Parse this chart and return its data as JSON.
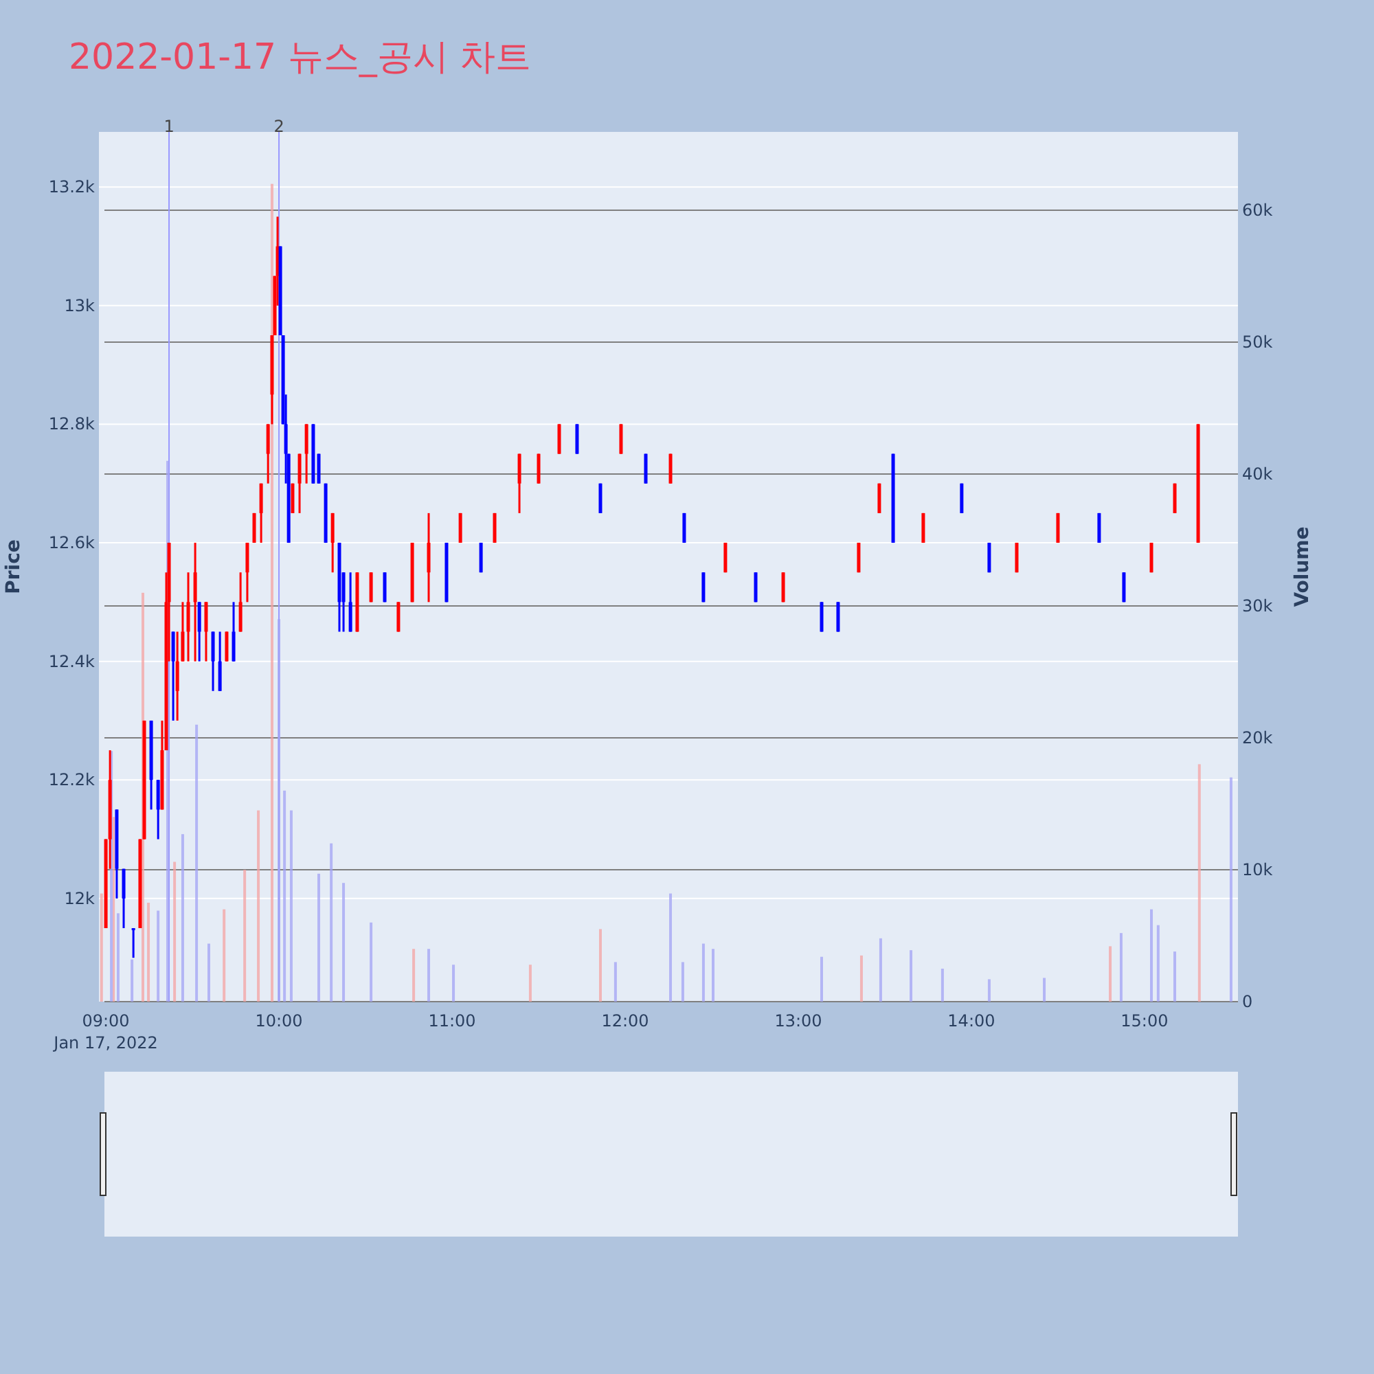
{
  "chart_data": {
    "type": "candlestick",
    "title": "2022-01-17 뉴스_공시 차트",
    "ylabel": "Price",
    "y2label": "Volume",
    "xlim": [
      8.96,
      15.54
    ],
    "xticks": [
      {
        "value": 9,
        "label": "09:00"
      },
      {
        "value": 10,
        "label": "10:00"
      },
      {
        "value": 11,
        "label": "11:00"
      },
      {
        "value": 12,
        "label": "12:00"
      },
      {
        "value": 13,
        "label": "13:00"
      },
      {
        "value": 14,
        "label": "14:00"
      },
      {
        "value": 15,
        "label": "15:00"
      }
    ],
    "ylim": [
      11826,
      13293
    ],
    "yticks": [
      {
        "value": 12000,
        "label": "12k"
      },
      {
        "value": 12200,
        "label": "12.2k"
      },
      {
        "value": 12400,
        "label": "12.4k"
      },
      {
        "value": 12600,
        "label": "12.6k"
      },
      {
        "value": 12800,
        "label": "12.8k"
      },
      {
        "value": 13000,
        "label": "13k"
      },
      {
        "value": 13200,
        "label": "13.2k"
      }
    ],
    "y2lim": [
      0,
      65940
    ],
    "y2ticks": [
      0,
      {
        "value": 10000,
        "label": "10k"
      },
      {
        "value": 20000,
        "label": "20k"
      },
      {
        "value": 30000,
        "label": "30k"
      },
      {
        "value": 40000,
        "label": "40k"
      },
      {
        "value": 50000,
        "label": "50k"
      },
      {
        "value": 60000,
        "label": "60k"
      }
    ],
    "grid": true,
    "annotations": [
      "Jan 17, 2022",
      {
        "text": "1",
        "x": 9.365
      },
      {
        "text": "2",
        "x": 10.0
      }
    ],
    "ref_lines": [
      {
        "axis": "x",
        "value": 9.365,
        "color": "#9999ff"
      },
      {
        "axis": "x",
        "value": 10.0,
        "color": "#9999ff"
      }
    ],
    "series": [
      {
        "type": "bar",
        "axis": "y2",
        "color": "#f5a3a3",
        "x": [
          8.975,
          9.044,
          9.214,
          9.246,
          9.397,
          9.683,
          9.802,
          9.881,
          9.96,
          10.778,
          11.452,
          11.857,
          13.365,
          14.802,
          15.317
        ],
        "values": [
          8200,
          14000,
          31000,
          7500,
          10600,
          7000,
          10000,
          14500,
          62000,
          4000,
          2800,
          5500,
          3500,
          4200,
          18000
        ]
      },
      {
        "type": "bar",
        "axis": "y2",
        "color": "#a3a3f5",
        "x": [
          9.032,
          9.071,
          9.151,
          9.302,
          9.357,
          9.444,
          9.524,
          9.595,
          10.0,
          10.032,
          10.071,
          10.23,
          10.302,
          10.373,
          10.532,
          10.865,
          11.008,
          11.944,
          12.262,
          12.333,
          12.452,
          12.508,
          13.135,
          13.476,
          13.651,
          13.833,
          14.103,
          14.421,
          14.865,
          15.04,
          15.079,
          15.175,
          15.5
        ],
        "values": [
          19000,
          6700,
          3200,
          6900,
          41000,
          12700,
          21000,
          4400,
          29000,
          16000,
          14500,
          9700,
          12000,
          9000,
          6000,
          4000,
          2800,
          3000,
          8200,
          3000,
          4400,
          4000,
          3400,
          4800,
          3900,
          2500,
          1700,
          1800,
          5200,
          7000,
          5800,
          3800,
          17000
        ]
      },
      {
        "type": "candlestick",
        "color": "#ff0000",
        "x": [
          9.0,
          9.024,
          9.198,
          9.222,
          9.325,
          9.349,
          9.365,
          9.413,
          9.444,
          9.476,
          9.516,
          9.579,
          9.698,
          9.778,
          9.817,
          9.857,
          9.897,
          9.937,
          9.96,
          9.976,
          9.992,
          10.079,
          10.119,
          10.159,
          10.31,
          10.452,
          10.532,
          10.69,
          10.77,
          10.865,
          11.048,
          11.246,
          11.389,
          11.5,
          11.619,
          11.976,
          12.262,
          12.579,
          12.913,
          13.349,
          13.468,
          13.722,
          14.262,
          14.5,
          15.04,
          15.175,
          15.31
        ],
        "ohlc": [
          [
            11950,
            12100,
            11950,
            12100
          ],
          [
            12100,
            12250,
            12050,
            12200
          ],
          [
            11950,
            12100,
            11950,
            12100
          ],
          [
            12100,
            12300,
            12100,
            12300
          ],
          [
            12150,
            12300,
            12150,
            12250
          ],
          [
            12250,
            12550,
            12250,
            12500
          ],
          [
            12500,
            12600,
            12400,
            12600
          ],
          [
            12350,
            12450,
            12300,
            12400
          ],
          [
            12400,
            12500,
            12400,
            12450
          ],
          [
            12450,
            12550,
            12400,
            12500
          ],
          [
            12500,
            12600,
            12400,
            12550
          ],
          [
            12450,
            12500,
            12400,
            12500
          ],
          [
            12400,
            12450,
            12400,
            12450
          ],
          [
            12450,
            12550,
            12450,
            12500
          ],
          [
            12550,
            12600,
            12500,
            12600
          ],
          [
            12600,
            12650,
            12600,
            12650
          ],
          [
            12650,
            12700,
            12600,
            12700
          ],
          [
            12750,
            12800,
            12700,
            12800
          ],
          [
            12850,
            12950,
            12800,
            12950
          ],
          [
            12950,
            13050,
            12950,
            13050
          ],
          [
            13050,
            13150,
            13000,
            13100
          ],
          [
            12650,
            12700,
            12650,
            12700
          ],
          [
            12700,
            12750,
            12650,
            12750
          ],
          [
            12750,
            12800,
            12700,
            12800
          ],
          [
            12600,
            12650,
            12550,
            12650
          ],
          [
            12450,
            12550,
            12450,
            12550
          ],
          [
            12500,
            12550,
            12500,
            12550
          ],
          [
            12450,
            12500,
            12450,
            12500
          ],
          [
            12500,
            12600,
            12500,
            12600
          ],
          [
            12550,
            12650,
            12500,
            12600
          ],
          [
            12600,
            12650,
            12600,
            12650
          ],
          [
            12600,
            12650,
            12600,
            12650
          ],
          [
            12700,
            12750,
            12650,
            12750
          ],
          [
            12700,
            12750,
            12700,
            12750
          ],
          [
            12750,
            12800,
            12750,
            12800
          ],
          [
            12750,
            12800,
            12750,
            12800
          ],
          [
            12700,
            12750,
            12700,
            12750
          ],
          [
            12550,
            12600,
            12550,
            12600
          ],
          [
            12500,
            12550,
            12500,
            12550
          ],
          [
            12550,
            12600,
            12550,
            12600
          ],
          [
            12650,
            12700,
            12650,
            12700
          ],
          [
            12600,
            12650,
            12600,
            12650
          ],
          [
            12550,
            12600,
            12550,
            12600
          ],
          [
            12600,
            12650,
            12600,
            12650
          ],
          [
            12550,
            12600,
            12550,
            12600
          ],
          [
            12650,
            12700,
            12650,
            12700
          ],
          [
            12600,
            12800,
            12600,
            12800
          ]
        ]
      },
      {
        "type": "candlestick",
        "color": "#0000ff",
        "x": [
          9.063,
          9.103,
          9.159,
          9.262,
          9.302,
          9.389,
          9.54,
          9.619,
          9.659,
          9.738,
          10.008,
          10.024,
          10.04,
          10.056,
          10.198,
          10.23,
          10.27,
          10.349,
          10.373,
          10.413,
          10.611,
          10.968,
          11.167,
          11.722,
          11.857,
          12.119,
          12.341,
          12.452,
          12.754,
          13.135,
          13.23,
          13.548,
          13.944,
          14.103,
          14.738,
          14.881
        ],
        "ohlc": [
          [
            12150,
            12150,
            12000,
            12050
          ],
          [
            12050,
            12050,
            11950,
            12000
          ],
          [
            11950,
            11950,
            11900,
            11950
          ],
          [
            12300,
            12300,
            12150,
            12200
          ],
          [
            12200,
            12200,
            12100,
            12150
          ],
          [
            12450,
            12450,
            12300,
            12400
          ],
          [
            12500,
            12500,
            12400,
            12450
          ],
          [
            12450,
            12450,
            12350,
            12400
          ],
          [
            12400,
            12450,
            12350,
            12350
          ],
          [
            12450,
            12500,
            12400,
            12400
          ],
          [
            13100,
            13100,
            12950,
            12950
          ],
          [
            12950,
            12950,
            12800,
            12800
          ],
          [
            12800,
            12850,
            12700,
            12750
          ],
          [
            12750,
            12750,
            12600,
            12600
          ],
          [
            12800,
            12800,
            12700,
            12700
          ],
          [
            12750,
            12750,
            12700,
            12700
          ],
          [
            12700,
            12700,
            12600,
            12600
          ],
          [
            12600,
            12600,
            12450,
            12500
          ],
          [
            12550,
            12550,
            12450,
            12500
          ],
          [
            12500,
            12550,
            12450,
            12450
          ],
          [
            12550,
            12550,
            12500,
            12500
          ],
          [
            12600,
            12600,
            12500,
            12500
          ],
          [
            12600,
            12600,
            12550,
            12550
          ],
          [
            12800,
            12800,
            12750,
            12750
          ],
          [
            12700,
            12700,
            12650,
            12650
          ],
          [
            12750,
            12750,
            12700,
            12700
          ],
          [
            12650,
            12650,
            12600,
            12600
          ],
          [
            12550,
            12550,
            12500,
            12500
          ],
          [
            12550,
            12550,
            12500,
            12500
          ],
          [
            12500,
            12500,
            12450,
            12450
          ],
          [
            12500,
            12500,
            12450,
            12450
          ],
          [
            12750,
            12750,
            12600,
            12600
          ],
          [
            12700,
            12700,
            12650,
            12650
          ],
          [
            12600,
            12600,
            12550,
            12550
          ],
          [
            12650,
            12650,
            12600,
            12600
          ],
          [
            12550,
            12550,
            12500,
            12500
          ]
        ]
      }
    ]
  }
}
